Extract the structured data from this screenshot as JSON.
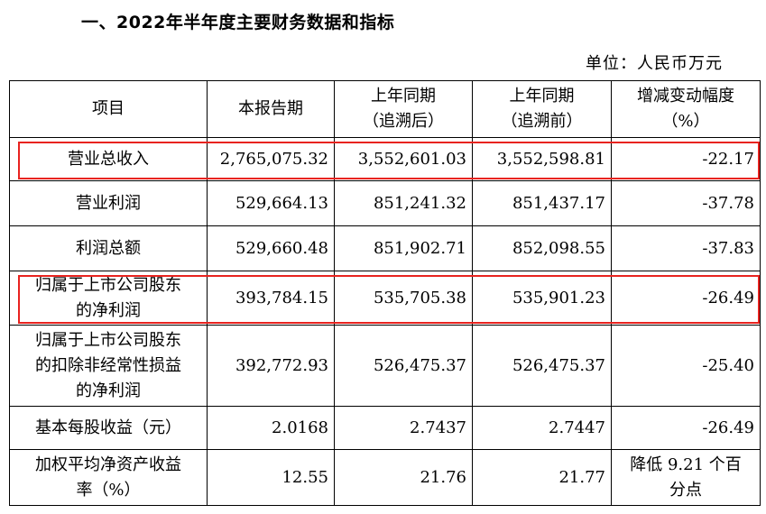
{
  "doc": {
    "title": "一、2022年半年度主要财务数据和指标",
    "unit": "单位：人民币万元"
  },
  "table": {
    "headers": [
      [
        "项目"
      ],
      [
        "本报告期"
      ],
      [
        "上年同期",
        "（追溯后）"
      ],
      [
        "上年同期",
        "（追溯前）"
      ],
      [
        "增减变动幅度",
        "（%）"
      ]
    ],
    "rows": [
      {
        "label": [
          "营业总收入"
        ],
        "current": "2,765,075.32",
        "prior_restated": "3,552,601.03",
        "prior_original": "3,552,598.81",
        "change": [
          "-22.17"
        ],
        "highlighted": true
      },
      {
        "label": [
          "营业利润"
        ],
        "current": "529,664.13",
        "prior_restated": "851,241.32",
        "prior_original": "851,437.17",
        "change": [
          "-37.78"
        ],
        "highlighted": false
      },
      {
        "label": [
          "利润总额"
        ],
        "current": "529,660.48",
        "prior_restated": "851,902.71",
        "prior_original": "852,098.55",
        "change": [
          "-37.83"
        ],
        "highlighted": false
      },
      {
        "label": [
          "归属于上市公司股东",
          "的净利润"
        ],
        "current": "393,784.15",
        "prior_restated": "535,705.38",
        "prior_original": "535,901.23",
        "change": [
          "-26.49"
        ],
        "highlighted": true
      },
      {
        "label": [
          "归属于上市公司股东",
          "的扣除非经常性损益",
          "的净利润"
        ],
        "current": "392,772.93",
        "prior_restated": "526,475.37",
        "prior_original": "526,475.37",
        "change": [
          "-25.40"
        ],
        "highlighted": false
      },
      {
        "label": [
          "基本每股收益（元）"
        ],
        "current": "2.0168",
        "prior_restated": "2.7437",
        "prior_original": "2.7447",
        "change": [
          "-26.49"
        ],
        "highlighted": false
      },
      {
        "label": [
          "加权平均净资产收益",
          "率（%）"
        ],
        "current": "12.55",
        "prior_restated": "21.76",
        "prior_original": "21.77",
        "change": [
          "降低 9.21 个百",
          "分点"
        ],
        "highlighted": false
      }
    ]
  },
  "colors": {
    "highlight": "#e8231f",
    "border": "#000000",
    "background": "#ffffff"
  }
}
